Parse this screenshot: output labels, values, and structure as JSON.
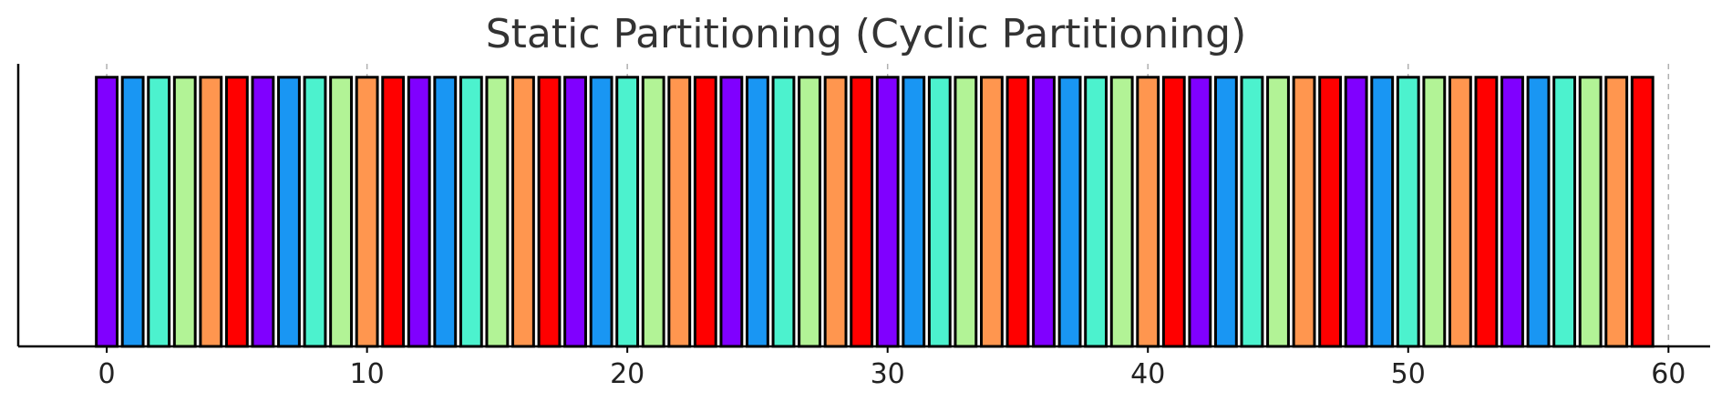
{
  "chart_data": {
    "type": "bar",
    "title": "Static Partitioning (Cyclic Partitioning)",
    "xlabel": "",
    "ylabel": "",
    "x_ticks": [
      0,
      10,
      20,
      30,
      40,
      50,
      60
    ],
    "xlim": [
      -3.4,
      61.6
    ],
    "ylim": [
      0,
      1.05
    ],
    "grid": "vertical dashed",
    "y_axis_ticks": "none",
    "bar_value": 1,
    "categories": [
      0,
      1,
      2,
      3,
      4,
      5,
      6,
      7,
      8,
      9,
      10,
      11,
      12,
      13,
      14,
      15,
      16,
      17,
      18,
      19,
      20,
      21,
      22,
      23,
      24,
      25,
      26,
      27,
      28,
      29,
      30,
      31,
      32,
      33,
      34,
      35,
      36,
      37,
      38,
      39,
      40,
      41,
      42,
      43,
      44,
      45,
      46,
      47,
      48,
      49,
      50,
      51,
      52,
      53,
      54,
      55,
      56,
      57,
      58,
      59
    ],
    "partition_of_each_bar": [
      0,
      1,
      2,
      3,
      4,
      5,
      0,
      1,
      2,
      3,
      4,
      5,
      0,
      1,
      2,
      3,
      4,
      5,
      0,
      1,
      2,
      3,
      4,
      5,
      0,
      1,
      2,
      3,
      4,
      5,
      0,
      1,
      2,
      3,
      4,
      5,
      0,
      1,
      2,
      3,
      4,
      5,
      0,
      1,
      2,
      3,
      4,
      5,
      0,
      1,
      2,
      3,
      4,
      5,
      0,
      1,
      2,
      3,
      4,
      5
    ],
    "partition_colors": [
      "#8000ff",
      "#1996f3",
      "#4cf2ce",
      "#b2f396",
      "#ff964f",
      "#ff0000"
    ]
  }
}
